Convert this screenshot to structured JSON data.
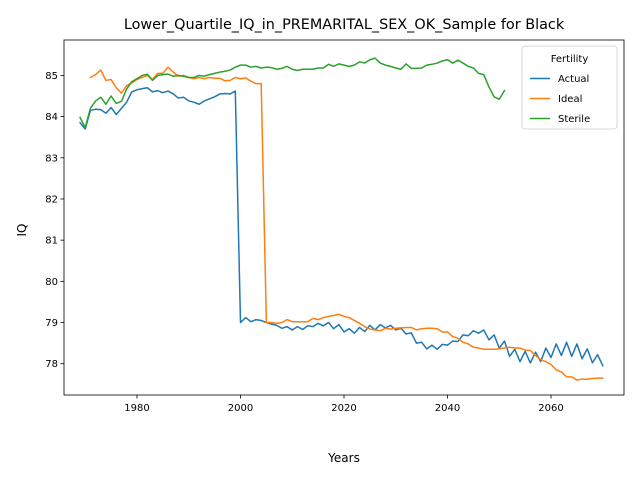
{
  "chart_data": {
    "type": "line",
    "title": "Lower_Quartile_IQ_in_PREMARITAL_SEX_OK_Sample for Black",
    "xlabel": "Years",
    "ylabel": "IQ",
    "xlim": [
      1965.9,
      2074.1
    ],
    "ylim": [
      77.24,
      85.86
    ],
    "x_ticks": [
      1980,
      2000,
      2020,
      2040,
      2060
    ],
    "y_ticks": [
      78,
      79,
      80,
      81,
      82,
      83,
      84,
      85
    ],
    "grid": false,
    "legend": {
      "title": "Fertility",
      "placement": "top-right"
    },
    "series": [
      {
        "name": "Actual",
        "color": "#1f77b4",
        "points": [
          [
            1969,
            83.85
          ],
          [
            1970,
            83.7
          ],
          [
            1971,
            84.15
          ],
          [
            1972,
            84.18
          ],
          [
            1973,
            84.17
          ],
          [
            1974,
            84.08
          ],
          [
            1975,
            84.22
          ],
          [
            1976,
            84.05
          ],
          [
            1977,
            84.2
          ],
          [
            1978,
            84.35
          ],
          [
            1979,
            84.6
          ],
          [
            1980,
            84.65
          ],
          [
            1981,
            84.68
          ],
          [
            1982,
            84.7
          ],
          [
            1983,
            84.6
          ],
          [
            1984,
            84.63
          ],
          [
            1985,
            84.58
          ],
          [
            1986,
            84.62
          ],
          [
            1987,
            84.55
          ],
          [
            1988,
            84.45
          ],
          [
            1989,
            84.47
          ],
          [
            1990,
            84.38
          ],
          [
            1991,
            84.35
          ],
          [
            1992,
            84.3
          ],
          [
            1993,
            84.38
          ],
          [
            1994,
            84.43
          ],
          [
            1995,
            84.48
          ],
          [
            1996,
            84.55
          ],
          [
            1997,
            84.56
          ],
          [
            1998,
            84.55
          ],
          [
            1999,
            84.62
          ],
          [
            2000,
            79.0
          ],
          [
            2001,
            79.12
          ],
          [
            2002,
            79.02
          ],
          [
            2003,
            79.07
          ],
          [
            2004,
            79.05
          ],
          [
            2005,
            79.0
          ],
          [
            2006,
            78.96
          ],
          [
            2007,
            78.93
          ],
          [
            2008,
            78.86
          ],
          [
            2009,
            78.9
          ],
          [
            2010,
            78.82
          ],
          [
            2011,
            78.9
          ],
          [
            2012,
            78.83
          ],
          [
            2013,
            78.92
          ],
          [
            2014,
            78.9
          ],
          [
            2015,
            78.98
          ],
          [
            2016,
            78.92
          ],
          [
            2017,
            79.0
          ],
          [
            2018,
            78.85
          ],
          [
            2019,
            78.95
          ],
          [
            2020,
            78.77
          ],
          [
            2021,
            78.85
          ],
          [
            2022,
            78.74
          ],
          [
            2023,
            78.88
          ],
          [
            2024,
            78.78
          ],
          [
            2025,
            78.93
          ],
          [
            2026,
            78.82
          ],
          [
            2027,
            78.95
          ],
          [
            2028,
            78.87
          ],
          [
            2029,
            78.93
          ],
          [
            2030,
            78.82
          ],
          [
            2031,
            78.86
          ],
          [
            2032,
            78.72
          ],
          [
            2033,
            78.75
          ],
          [
            2034,
            78.5
          ],
          [
            2035,
            78.52
          ],
          [
            2036,
            78.36
          ],
          [
            2037,
            78.45
          ],
          [
            2038,
            78.35
          ],
          [
            2039,
            78.47
          ],
          [
            2040,
            78.45
          ],
          [
            2041,
            78.55
          ],
          [
            2042,
            78.54
          ],
          [
            2043,
            78.7
          ],
          [
            2044,
            78.68
          ],
          [
            2045,
            78.8
          ],
          [
            2046,
            78.74
          ],
          [
            2047,
            78.82
          ],
          [
            2048,
            78.58
          ],
          [
            2049,
            78.7
          ],
          [
            2050,
            78.38
          ],
          [
            2051,
            78.55
          ],
          [
            2052,
            78.18
          ],
          [
            2053,
            78.35
          ],
          [
            2054,
            78.05
          ],
          [
            2055,
            78.3
          ],
          [
            2056,
            78.02
          ],
          [
            2057,
            78.28
          ],
          [
            2058,
            78.05
          ],
          [
            2059,
            78.38
          ],
          [
            2060,
            78.15
          ],
          [
            2061,
            78.48
          ],
          [
            2062,
            78.2
          ],
          [
            2063,
            78.52
          ],
          [
            2064,
            78.18
          ],
          [
            2065,
            78.48
          ],
          [
            2066,
            78.12
          ],
          [
            2067,
            78.36
          ],
          [
            2068,
            78.02
          ],
          [
            2069,
            78.22
          ],
          [
            2070,
            77.95
          ]
        ]
      },
      {
        "name": "Ideal",
        "color": "#ff7f0e",
        "points": [
          [
            1971,
            84.95
          ],
          [
            1972,
            85.02
          ],
          [
            1973,
            85.13
          ],
          [
            1974,
            84.88
          ],
          [
            1975,
            84.9
          ],
          [
            1976,
            84.7
          ],
          [
            1977,
            84.57
          ],
          [
            1978,
            84.75
          ],
          [
            1979,
            84.82
          ],
          [
            1980,
            84.9
          ],
          [
            1981,
            84.95
          ],
          [
            1982,
            85.0
          ],
          [
            1983,
            84.9
          ],
          [
            1984,
            85.05
          ],
          [
            1985,
            85.05
          ],
          [
            1986,
            85.2
          ],
          [
            1987,
            85.08
          ],
          [
            1988,
            84.98
          ],
          [
            1989,
            85.0
          ],
          [
            1990,
            84.95
          ],
          [
            1991,
            84.92
          ],
          [
            1992,
            84.95
          ],
          [
            1993,
            84.92
          ],
          [
            1994,
            84.95
          ],
          [
            1995,
            84.93
          ],
          [
            1996,
            84.93
          ],
          [
            1997,
            84.87
          ],
          [
            1998,
            84.88
          ],
          [
            1999,
            84.95
          ],
          [
            2000,
            84.92
          ],
          [
            2001,
            84.94
          ],
          [
            2002,
            84.86
          ],
          [
            2003,
            84.8
          ],
          [
            2004,
            84.8
          ],
          [
            2005,
            79.0
          ],
          [
            2006,
            79.0
          ],
          [
            2007,
            78.98
          ],
          [
            2008,
            79.0
          ],
          [
            2009,
            79.07
          ],
          [
            2010,
            79.02
          ],
          [
            2011,
            79.02
          ],
          [
            2012,
            79.02
          ],
          [
            2013,
            79.02
          ],
          [
            2014,
            79.1
          ],
          [
            2015,
            79.07
          ],
          [
            2016,
            79.12
          ],
          [
            2017,
            79.15
          ],
          [
            2018,
            79.17
          ],
          [
            2019,
            79.2
          ],
          [
            2020,
            79.15
          ],
          [
            2021,
            79.12
          ],
          [
            2022,
            79.05
          ],
          [
            2023,
            78.98
          ],
          [
            2024,
            78.9
          ],
          [
            2025,
            78.84
          ],
          [
            2026,
            78.82
          ],
          [
            2027,
            78.8
          ],
          [
            2028,
            78.86
          ],
          [
            2029,
            78.84
          ],
          [
            2030,
            78.86
          ],
          [
            2031,
            78.87
          ],
          [
            2032,
            78.88
          ],
          [
            2033,
            78.88
          ],
          [
            2034,
            78.82
          ],
          [
            2035,
            78.85
          ],
          [
            2036,
            78.86
          ],
          [
            2037,
            78.86
          ],
          [
            2038,
            78.85
          ],
          [
            2039,
            78.77
          ],
          [
            2040,
            78.77
          ],
          [
            2041,
            78.66
          ],
          [
            2042,
            78.62
          ],
          [
            2043,
            78.52
          ],
          [
            2044,
            78.48
          ],
          [
            2045,
            78.4
          ],
          [
            2046,
            78.38
          ],
          [
            2047,
            78.35
          ],
          [
            2048,
            78.35
          ],
          [
            2049,
            78.35
          ],
          [
            2050,
            78.36
          ],
          [
            2051,
            78.38
          ],
          [
            2052,
            78.4
          ],
          [
            2053,
            78.38
          ],
          [
            2054,
            78.38
          ],
          [
            2055,
            78.33
          ],
          [
            2056,
            78.32
          ],
          [
            2057,
            78.2
          ],
          [
            2058,
            78.1
          ],
          [
            2059,
            78.05
          ],
          [
            2060,
            77.98
          ],
          [
            2061,
            77.85
          ],
          [
            2062,
            77.8
          ],
          [
            2063,
            77.68
          ],
          [
            2064,
            77.68
          ],
          [
            2065,
            77.6
          ],
          [
            2066,
            77.63
          ],
          [
            2067,
            77.62
          ],
          [
            2068,
            77.64
          ],
          [
            2069,
            77.65
          ],
          [
            2070,
            77.65
          ]
        ]
      },
      {
        "name": "Sterile",
        "color": "#2ca02c",
        "points": [
          [
            1969,
            83.98
          ],
          [
            1970,
            83.73
          ],
          [
            1971,
            84.2
          ],
          [
            1972,
            84.38
          ],
          [
            1973,
            84.47
          ],
          [
            1974,
            84.3
          ],
          [
            1975,
            84.5
          ],
          [
            1976,
            84.32
          ],
          [
            1977,
            84.37
          ],
          [
            1978,
            84.67
          ],
          [
            1979,
            84.85
          ],
          [
            1980,
            84.92
          ],
          [
            1981,
            85.0
          ],
          [
            1982,
            85.03
          ],
          [
            1983,
            84.88
          ],
          [
            1984,
            85.0
          ],
          [
            1985,
            85.02
          ],
          [
            1986,
            85.03
          ],
          [
            1987,
            84.98
          ],
          [
            1988,
            85.0
          ],
          [
            1989,
            84.98
          ],
          [
            1990,
            84.95
          ],
          [
            1991,
            84.95
          ],
          [
            1992,
            85.0
          ],
          [
            1993,
            84.98
          ],
          [
            1994,
            85.02
          ],
          [
            1995,
            85.05
          ],
          [
            1996,
            85.08
          ],
          [
            1997,
            85.1
          ],
          [
            1998,
            85.13
          ],
          [
            1999,
            85.2
          ],
          [
            2000,
            85.25
          ],
          [
            2001,
            85.25
          ],
          [
            2002,
            85.2
          ],
          [
            2003,
            85.22
          ],
          [
            2004,
            85.18
          ],
          [
            2005,
            85.2
          ],
          [
            2006,
            85.19
          ],
          [
            2007,
            85.15
          ],
          [
            2008,
            85.17
          ],
          [
            2009,
            85.22
          ],
          [
            2010,
            85.15
          ],
          [
            2011,
            85.12
          ],
          [
            2012,
            85.15
          ],
          [
            2013,
            85.15
          ],
          [
            2014,
            85.15
          ],
          [
            2015,
            85.18
          ],
          [
            2016,
            85.18
          ],
          [
            2017,
            85.27
          ],
          [
            2018,
            85.22
          ],
          [
            2019,
            85.28
          ],
          [
            2020,
            85.25
          ],
          [
            2021,
            85.22
          ],
          [
            2022,
            85.25
          ],
          [
            2023,
            85.33
          ],
          [
            2024,
            85.3
          ],
          [
            2025,
            85.38
          ],
          [
            2026,
            85.42
          ],
          [
            2027,
            85.3
          ],
          [
            2028,
            85.25
          ],
          [
            2029,
            85.22
          ],
          [
            2030,
            85.18
          ],
          [
            2031,
            85.15
          ],
          [
            2032,
            85.28
          ],
          [
            2033,
            85.17
          ],
          [
            2034,
            85.17
          ],
          [
            2035,
            85.18
          ],
          [
            2036,
            85.25
          ],
          [
            2037,
            85.27
          ],
          [
            2038,
            85.3
          ],
          [
            2039,
            85.35
          ],
          [
            2040,
            85.38
          ],
          [
            2041,
            85.3
          ],
          [
            2042,
            85.37
          ],
          [
            2043,
            85.3
          ],
          [
            2044,
            85.22
          ],
          [
            2045,
            85.18
          ],
          [
            2046,
            85.05
          ],
          [
            2047,
            85.02
          ],
          [
            2048,
            84.72
          ],
          [
            2049,
            84.48
          ],
          [
            2050,
            84.42
          ],
          [
            2051,
            84.63
          ]
        ]
      }
    ]
  }
}
